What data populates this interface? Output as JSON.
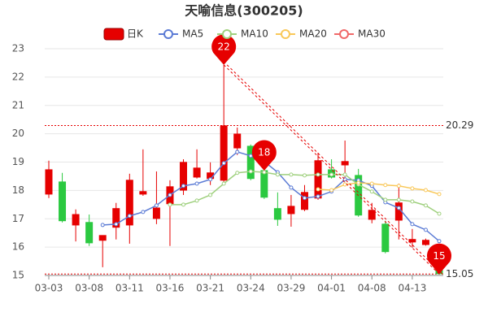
{
  "chart_data": {
    "type": "candlestick",
    "title": "天喻信息(300205)",
    "categories": [
      "03-03",
      null,
      null,
      "03-08",
      null,
      null,
      "03-11",
      null,
      null,
      "03-16",
      null,
      null,
      "03-21",
      null,
      null,
      "03-24",
      null,
      null,
      "03-29",
      null,
      null,
      "04-01",
      null,
      null,
      "04-08",
      null,
      null,
      "04-13",
      null,
      null
    ],
    "candles": {
      "name": "日K",
      "up_color": "#e60000",
      "down_color": "#2bc940",
      "open": [
        17.87,
        18.3,
        16.78,
        16.87,
        16.24,
        16.7,
        16.78,
        17.87,
        17.01,
        17.53,
        18.01,
        18.47,
        18.42,
        18.36,
        19.5,
        19.56,
        18.7,
        17.36,
        17.18,
        17.33,
        17.73,
        18.73,
        18.9,
        18.53,
        16.98,
        16.81,
        16.95,
        16.18,
        16.09,
        15.67
      ],
      "close": [
        18.73,
        16.93,
        17.15,
        16.15,
        16.41,
        17.36,
        18.36,
        17.96,
        17.38,
        18.13,
        18.99,
        18.79,
        18.62,
        20.28,
        19.99,
        18.42,
        17.76,
        16.98,
        17.44,
        17.93,
        19.05,
        18.47,
        19.02,
        17.13,
        17.3,
        15.84,
        17.56,
        16.27,
        16.24,
        15.06
      ],
      "high": [
        19.05,
        18.62,
        17.33,
        17.15,
        16.41,
        17.56,
        18.59,
        19.45,
        18.67,
        18.36,
        19.1,
        19.45,
        18.99,
        22.43,
        20.22,
        19.62,
        19.05,
        17.93,
        17.84,
        18.19,
        19.33,
        19.1,
        19.76,
        18.76,
        17.56,
        16.93,
        18.24,
        16.64,
        16.3,
        16.01
      ],
      "low": [
        17.73,
        16.87,
        16.2,
        16.04,
        15.29,
        16.27,
        16.12,
        17.81,
        16.81,
        16.04,
        17.84,
        18.42,
        18.19,
        18.24,
        19.25,
        18.36,
        17.7,
        16.75,
        16.72,
        17.27,
        17.67,
        18.42,
        18.44,
        17.07,
        16.84,
        15.78,
        16.27,
        15.98,
        16.05,
        15.05
      ]
    },
    "series": [
      {
        "name": "MA5",
        "color": "#5b7bd5",
        "values": [
          null,
          null,
          null,
          null,
          16.78,
          16.81,
          17.1,
          17.24,
          17.47,
          17.84,
          18.16,
          18.24,
          18.39,
          18.96,
          19.36,
          19.22,
          19.02,
          18.64,
          18.1,
          17.73,
          17.79,
          17.96,
          18.39,
          18.36,
          18.16,
          17.58,
          17.38,
          16.81,
          16.61,
          16.21
        ]
      },
      {
        "name": "MA10",
        "color": "#9fd07e",
        "values": [
          null,
          null,
          null,
          null,
          null,
          null,
          null,
          null,
          null,
          17.5,
          17.5,
          17.64,
          17.84,
          18.24,
          18.62,
          18.67,
          18.64,
          18.56,
          18.56,
          18.53,
          18.56,
          18.56,
          18.56,
          18.21,
          17.96,
          17.67,
          17.67,
          17.61,
          17.47,
          17.18
        ]
      },
      {
        "name": "MA20",
        "color": "#f9c859",
        "values": [
          null,
          null,
          null,
          null,
          null,
          null,
          null,
          null,
          null,
          null,
          null,
          null,
          null,
          null,
          null,
          null,
          null,
          null,
          null,
          null,
          18.04,
          18.01,
          18.21,
          18.27,
          18.24,
          18.19,
          18.16,
          18.07,
          18.01,
          17.87
        ]
      },
      {
        "name": "MA30",
        "color": "#f06868",
        "values": [
          null,
          null,
          null,
          null,
          null,
          null,
          null,
          null,
          null,
          null,
          null,
          null,
          null,
          null,
          null,
          null,
          null,
          null,
          null,
          null,
          null,
          null,
          null,
          null,
          null,
          null,
          null,
          null,
          null,
          null
        ]
      }
    ],
    "ylim": [
      15,
      23
    ],
    "yticks": [
      15,
      16,
      17,
      18,
      19,
      20,
      21,
      22,
      23
    ],
    "grid": true,
    "reference_lines": [
      20.29,
      15.05
    ],
    "annotations": [
      "22",
      "18",
      "15"
    ]
  }
}
